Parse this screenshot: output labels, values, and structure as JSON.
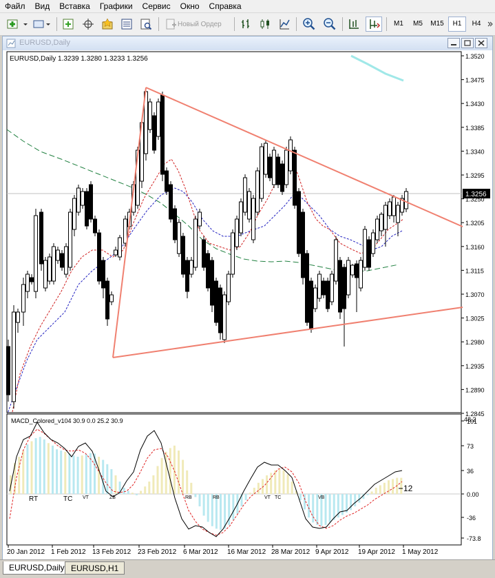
{
  "menu": [
    "Файл",
    "Вид",
    "Вставка",
    "Графики",
    "Сервис",
    "Окно",
    "Справка"
  ],
  "toolbar": {
    "new_order_label": "Новый Ордер",
    "timeframes": [
      "M1",
      "M5",
      "M15",
      "H1",
      "H4"
    ],
    "active_timeframe": "H1"
  },
  "window": {
    "title": "EURUSD,Daily"
  },
  "chart": {
    "header": "EURUSD,Daily  1.3239 1.3280 1.3233 1.3256",
    "current_price": "1.3256",
    "price_ticks": [
      "1.3520",
      "1.3475",
      "1.3430",
      "1.3385",
      "1.3340",
      "1.3295",
      "1.3250",
      "1.3205",
      "1.3160",
      "1.3115",
      "1.3070",
      "1.3025",
      "1.2980",
      "1.2935",
      "1.2890",
      "1.2845"
    ],
    "date_ticks": [
      "20 Jan 2012",
      "1 Feb 2012",
      "13 Feb 2012",
      "23 Feb 2012",
      "6 Mar 2012",
      "16 Mar 2012",
      "28 Mar 2012",
      "9 Apr 2012",
      "19 Apr 2012",
      "1 May 2012"
    ],
    "colors": {
      "bull": "#ffffff",
      "bear": "#000000",
      "trendline": "#f08070",
      "ma_red": "#d02020",
      "ma_blue": "#2020c0",
      "ma_green": "#208040",
      "ma_cyan": "#a0e8e8"
    }
  },
  "macd": {
    "header": "MACD_Colored_v104 30.9 0.0 25.2 30.9",
    "ticks": [
      "101",
      "73",
      "36",
      "0.00",
      "-36",
      "-73.8"
    ],
    "top_label": "48.2",
    "value_label": "12",
    "annotations": [
      "RT",
      "TC",
      "VT",
      "ZB",
      "RB",
      "RB",
      "VT",
      "TC",
      "VB"
    ],
    "colors": {
      "up": "#f0eab8",
      "down": "#b8e8f0",
      "signal": "#e02020",
      "macd_line": "#000000"
    }
  },
  "tabs": [
    {
      "label": "EURUSD,Daily",
      "active": true
    },
    {
      "label": "EURUSD,H1",
      "active": false
    }
  ]
}
